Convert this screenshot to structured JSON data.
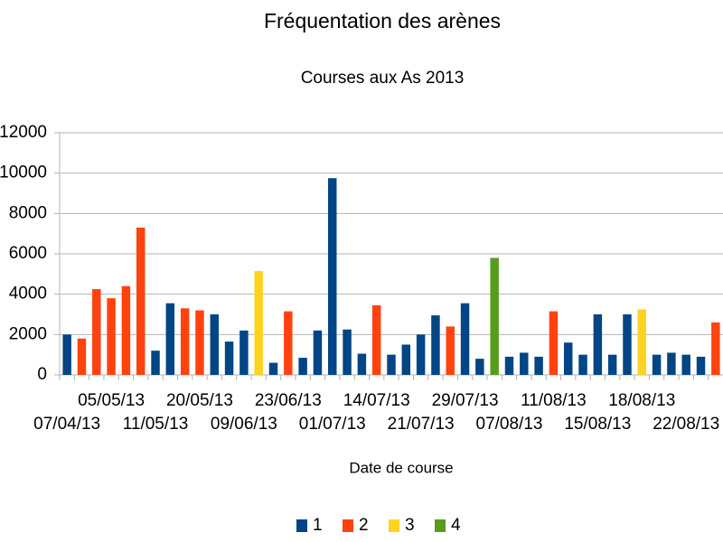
{
  "chart_data": {
    "type": "bar",
    "title": "Fréquentation des arènes",
    "subtitle": "Courses aux As 2013",
    "x_label": "Date de course",
    "categories": [
      "07/04/13",
      null,
      null,
      "05/05/13",
      null,
      null,
      "11/05/13",
      null,
      null,
      "20/05/13",
      null,
      null,
      "09/06/13",
      null,
      null,
      "23/06/13",
      null,
      null,
      "01/07/13",
      null,
      null,
      "14/07/13",
      null,
      null,
      "21/07/13",
      null,
      null,
      "29/07/13",
      null,
      null,
      "07/08/13",
      null,
      null,
      "11/08/13",
      null,
      null,
      "15/08/13",
      null,
      null,
      "18/08/13",
      null,
      null,
      "22/08/13",
      null,
      null
    ],
    "series": [
      {
        "name": "1",
        "color": "#004586",
        "values": [
          2000,
          null,
          null,
          null,
          null,
          null,
          1200,
          3550,
          null,
          null,
          3000,
          1650,
          2200,
          null,
          600,
          null,
          850,
          2200,
          9750,
          2250,
          1050,
          null,
          1000,
          1500,
          2000,
          2950,
          null,
          3550,
          800,
          null,
          900,
          1100,
          900,
          null,
          1600,
          1000,
          3000,
          1000,
          3000,
          null,
          1000,
          1100,
          1000,
          900,
          null
        ]
      },
      {
        "name": "2",
        "color": "#ff420e",
        "values": [
          null,
          1800,
          4250,
          3800,
          4400,
          7300,
          null,
          null,
          3300,
          3200,
          null,
          null,
          null,
          null,
          null,
          3150,
          null,
          null,
          null,
          null,
          null,
          3450,
          null,
          null,
          null,
          null,
          2400,
          null,
          null,
          null,
          null,
          null,
          null,
          3150,
          null,
          null,
          null,
          null,
          null,
          null,
          null,
          null,
          null,
          null,
          2600
        ]
      },
      {
        "name": "3",
        "color": "#ffd320",
        "values": [
          null,
          null,
          null,
          null,
          null,
          null,
          null,
          null,
          null,
          null,
          null,
          null,
          null,
          5150,
          null,
          null,
          null,
          null,
          null,
          null,
          null,
          null,
          null,
          null,
          null,
          null,
          null,
          null,
          null,
          null,
          null,
          null,
          null,
          null,
          null,
          null,
          null,
          null,
          null,
          3250,
          null,
          null,
          null,
          null,
          null
        ]
      },
      {
        "name": "4",
        "color": "#579d1c",
        "values": [
          null,
          null,
          null,
          null,
          null,
          null,
          null,
          null,
          null,
          null,
          null,
          null,
          null,
          null,
          null,
          null,
          null,
          null,
          null,
          null,
          null,
          null,
          null,
          null,
          null,
          null,
          null,
          null,
          null,
          5800,
          null,
          null,
          null,
          null,
          null,
          null,
          null,
          null,
          null,
          null,
          null,
          null,
          null,
          null,
          null
        ]
      }
    ],
    "ylim": [
      0,
      12000
    ],
    "yticks": [
      0,
      2000,
      4000,
      6000,
      8000,
      10000,
      12000
    ],
    "grid": true,
    "legend": "bottom"
  }
}
